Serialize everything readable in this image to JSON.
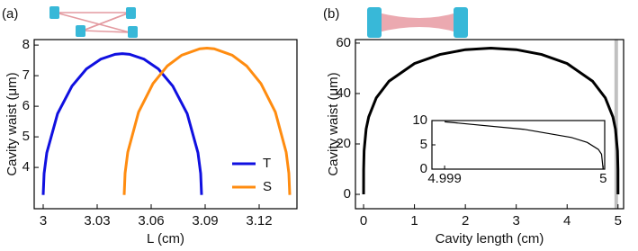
{
  "chart_data": [
    {
      "type": "line",
      "panel_label": "(a)",
      "xlabel": "L (cm)",
      "ylabel": "Cavity waist (μm)",
      "xlim": [
        2.995,
        3.141
      ],
      "ylim": [
        2.65,
        8.18
      ],
      "xticks": [
        3,
        3.03,
        3.06,
        3.09,
        3.12
      ],
      "yticks": [
        4,
        5,
        6,
        7,
        8
      ],
      "legend": "lower right",
      "series": [
        {
          "name": "T",
          "color": "#1010e0",
          "x": [
            3.0,
            3.0005,
            3.002,
            3.008,
            3.016,
            3.024,
            3.032,
            3.04,
            3.044,
            3.048,
            3.056,
            3.064,
            3.072,
            3.08,
            3.086,
            3.0875,
            3.088
          ],
          "values": [
            3.1,
            3.8,
            4.48,
            5.76,
            6.66,
            7.22,
            7.54,
            7.7,
            7.72,
            7.7,
            7.54,
            7.22,
            6.66,
            5.76,
            4.48,
            3.8,
            3.1
          ]
        },
        {
          "name": "S",
          "color": "#ff8c10",
          "x": [
            3.045,
            3.0455,
            3.047,
            3.053,
            3.061,
            3.069,
            3.077,
            3.087,
            3.091,
            3.095,
            3.105,
            3.113,
            3.121,
            3.129,
            3.135,
            3.1365,
            3.137
          ],
          "values": [
            3.1,
            3.81,
            4.5,
            5.81,
            6.74,
            7.32,
            7.67,
            7.88,
            7.9,
            7.88,
            7.67,
            7.32,
            6.74,
            5.81,
            4.5,
            3.81,
            3.1
          ]
        }
      ]
    },
    {
      "type": "line",
      "panel_label": "(b)",
      "xlabel": "Cavity length (cm)",
      "ylabel": "Cavity waist (μm)",
      "xlim": [
        -0.16,
        5.11
      ],
      "ylim": [
        -5.7,
        61.4
      ],
      "xticks": [
        0,
        1,
        2,
        3,
        4,
        5
      ],
      "yticks": [
        0,
        20,
        40,
        60
      ],
      "highlight_xlim": [
        4.93,
        5.0
      ],
      "highlight_color": "#c0c0c0",
      "series": [
        {
          "color": "#000000",
          "x": [
            0,
            0.001,
            0.01,
            0.05,
            0.1,
            0.25,
            0.5,
            1,
            1.5,
            2,
            2.5,
            3,
            3.5,
            4,
            4.5,
            4.75,
            4.9,
            4.95,
            4.99,
            4.999,
            5
          ],
          "values": [
            0,
            9.75,
            17.3,
            25.9,
            30.7,
            38.3,
            44.9,
            51.9,
            55.5,
            57.4,
            58,
            57.4,
            55.5,
            51.9,
            44.9,
            38.3,
            30.7,
            25.9,
            17.3,
            9.75,
            0
          ]
        }
      ]
    },
    {
      "type": "line",
      "inset_of": 1,
      "xlim": [
        4.99892,
        5.00001
      ],
      "ylim": [
        0,
        10
      ],
      "xticks": [
        4.999,
        5
      ],
      "yticks": [
        0,
        5,
        10
      ],
      "series": [
        {
          "color": "#000000",
          "x": [
            4.999,
            4.9995,
            4.9998,
            4.9999,
            4.99997,
            4.99999,
            5
          ],
          "values": [
            9.75,
            8.2,
            6.52,
            5.49,
            4.06,
            3.08,
            0
          ]
        }
      ]
    }
  ]
}
